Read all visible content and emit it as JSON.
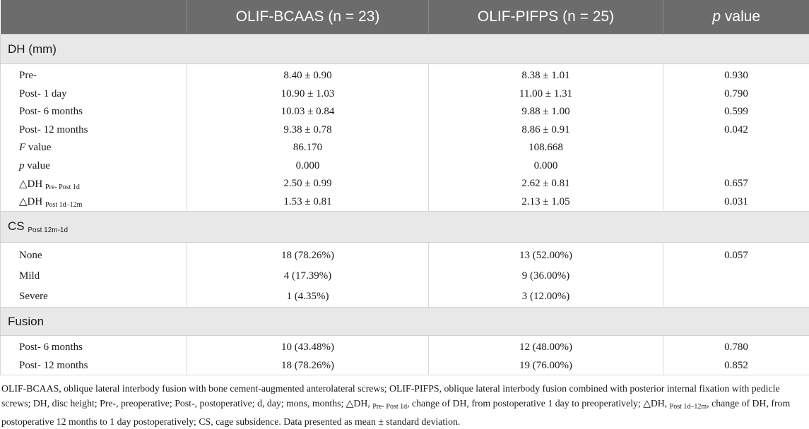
{
  "header": {
    "col1": "",
    "col2": "OLIF-BCAAS (n = 23)",
    "col3": "OLIF-PIFPS (n = 25)",
    "col4_p": "p",
    "col4_rest": " value"
  },
  "sections": {
    "dh": {
      "title": "DH (mm)",
      "rows": [
        {
          "label": "Pre-",
          "a": "8.40 ± 0.90",
          "b": "8.38 ± 1.01",
          "p": "0.930"
        },
        {
          "label": "Post- 1 day",
          "a": "10.90 ± 1.03",
          "b": "11.00 ± 1.31",
          "p": "0.790"
        },
        {
          "label": "Post- 6 months",
          "a": "10.03 ± 0.84",
          "b": "9.88 ± 1.00",
          "p": "0.599"
        },
        {
          "label": "Post- 12 months",
          "a": "9.38 ± 0.78",
          "b": "8.86 ± 0.91",
          "p": "0.042"
        },
        {
          "label_italic": "F",
          "label_rest": " value",
          "a": "86.170",
          "b": "108.668",
          "p": ""
        },
        {
          "label_italic": "p",
          "label_rest": " value",
          "a": "0.000",
          "b": "0.000",
          "p": ""
        },
        {
          "label_main": "△DH ",
          "label_sub": "Pre- Post 1d",
          "a": "2.50 ± 0.99",
          "b": "2.62 ± 0.81",
          "p": "0.657"
        },
        {
          "label_main": "△DH ",
          "label_sub": "Post 1d–12m",
          "a": "1.53 ± 0.81",
          "b": "2.13 ± 1.05",
          "p": "0.031"
        }
      ]
    },
    "cs": {
      "title_main": "CS ",
      "title_sub": "Post 12m-1d",
      "rows": [
        {
          "label": "None",
          "a": "18 (78.26%)",
          "b": "13 (52.00%)",
          "p": "0.057"
        },
        {
          "label": "Mild",
          "a": "4 (17.39%)",
          "b": "9 (36.00%)",
          "p": ""
        },
        {
          "label": "Severe",
          "a": "1 (4.35%)",
          "b": "3 (12.00%)",
          "p": ""
        }
      ]
    },
    "fusion": {
      "title": "Fusion",
      "rows": [
        {
          "label": "Post- 6 months",
          "a": "10 (43.48%)",
          "b": "12 (48.00%)",
          "p": "0.780"
        },
        {
          "label": "Post- 12 months",
          "a": "18 (78.26%)",
          "b": "19 (76.00%)",
          "p": "0.852"
        }
      ]
    }
  },
  "footnote": {
    "part1": "OLIF-BCAAS, oblique lateral interbody fusion with bone cement-augmented anterolateral screws; OLIF-PIFPS, oblique lateral interbody fusion combined with posterior internal fixation with pedicle screws; DH, disc height; Pre-, preoperative; Post-, postoperative; d, day; mons, months; △DH, ",
    "sub1": "Pre- Post 1d",
    "part2": ", change of DH, from postoperative 1 day to preoperatively; △DH, ",
    "sub2": "Post 1d–12m",
    "part3": ", change of DH, from postoperative 12 months to 1 day postoperatively; CS, cage subsidence. Data presented as mean ± standard deviation."
  },
  "colors": {
    "header_bg": "#6c6c6c",
    "section_bg": "#e8e8e8"
  }
}
